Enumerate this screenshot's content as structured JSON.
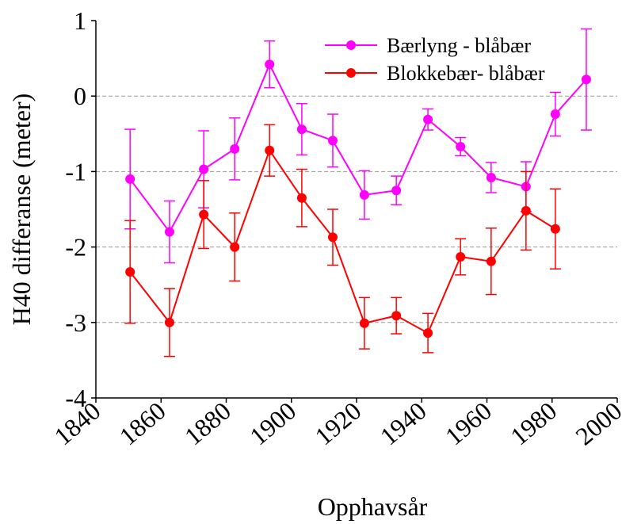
{
  "chart_data": {
    "type": "line",
    "x_label": "Opphavsår",
    "y_label": "H40 differanse (meter)",
    "xlim": [
      1840,
      2000
    ],
    "xticks": [
      1840,
      1860,
      1880,
      1900,
      1920,
      1940,
      1960,
      1980,
      2000
    ],
    "ylim": [
      -4,
      1
    ],
    "yticks": [
      -4,
      -3,
      -2,
      -1,
      0,
      1
    ],
    "grid": true,
    "legend": "upper right",
    "series": [
      {
        "name": "Bærlyng - blåbær",
        "color": "#ff00ff",
        "x": [
          1850.5,
          1862.6,
          1873.1,
          1882.6,
          1893.3,
          1903.2,
          1912.7,
          1922.4,
          1932.2,
          1941.9,
          1951.9,
          1961.3,
          1972,
          1981,
          1990.5
        ],
        "values": [
          -1.1,
          -1.8,
          -0.97,
          -0.7,
          0.42,
          -0.44,
          -0.59,
          -1.31,
          -1.25,
          -0.31,
          -0.67,
          -1.08,
          -1.2,
          -0.24,
          0.22
        ],
        "errors": [
          0.66,
          0.41,
          0.51,
          0.41,
          0.31,
          0.34,
          0.35,
          0.32,
          0.19,
          0.14,
          0.12,
          0.2,
          0.33,
          0.29,
          0.67
        ]
      },
      {
        "name": "Blokkebær- blåbær",
        "color": "#ff0000",
        "x": [
          1850.5,
          1862.6,
          1873.1,
          1882.6,
          1893.3,
          1903.2,
          1912.7,
          1922.4,
          1932.2,
          1941.9,
          1951.9,
          1961.3,
          1972,
          1981
        ],
        "values": [
          -2.33,
          -3.0,
          -1.57,
          -2.0,
          -0.72,
          -1.35,
          -1.87,
          -3.01,
          -2.91,
          -3.14,
          -2.13,
          -2.19,
          -1.52,
          -1.76
        ],
        "errors": [
          0.68,
          0.45,
          0.45,
          0.45,
          0.34,
          0.38,
          0.37,
          0.34,
          0.24,
          0.26,
          0.24,
          0.44,
          0.52,
          0.53
        ]
      }
    ]
  }
}
